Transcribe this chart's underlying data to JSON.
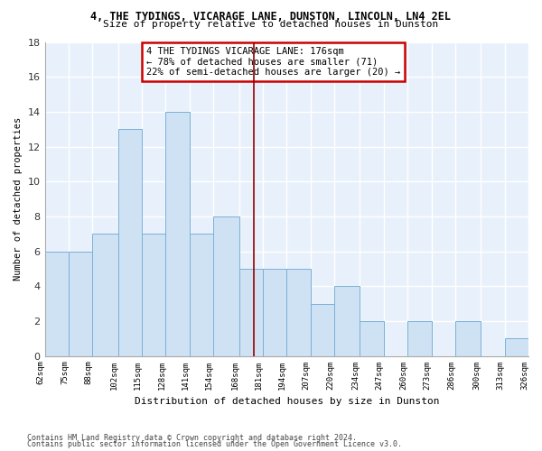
{
  "title": "4, THE TYDINGS, VICARAGE LANE, DUNSTON, LINCOLN, LN4 2EL",
  "subtitle": "Size of property relative to detached houses in Dunston",
  "xlabel": "Distribution of detached houses by size in Dunston",
  "ylabel": "Number of detached properties",
  "bar_color": "#cfe2f3",
  "bar_edge_color": "#7ab0d8",
  "background_color": "#e8f1fb",
  "grid_color": "#ffffff",
  "bins": [
    62,
    75,
    88,
    102,
    115,
    128,
    141,
    154,
    168,
    181,
    194,
    207,
    220,
    234,
    247,
    260,
    273,
    286,
    300,
    313,
    326
  ],
  "counts": [
    6,
    6,
    7,
    13,
    7,
    14,
    7,
    8,
    5,
    5,
    5,
    3,
    4,
    2,
    0,
    2,
    0,
    2,
    0,
    1
  ],
  "property_size": 176,
  "vline_color": "#990000",
  "annotation_lines": [
    "4 THE TYDINGS VICARAGE LANE: 176sqm",
    "← 78% of detached houses are smaller (71)",
    "22% of semi-detached houses are larger (20) →"
  ],
  "annotation_box_edge": "#cc0000",
  "ylim": [
    0,
    18
  ],
  "yticks": [
    0,
    2,
    4,
    6,
    8,
    10,
    12,
    14,
    16,
    18
  ],
  "footnote1": "Contains HM Land Registry data © Crown copyright and database right 2024.",
  "footnote2": "Contains public sector information licensed under the Open Government Licence v3.0."
}
